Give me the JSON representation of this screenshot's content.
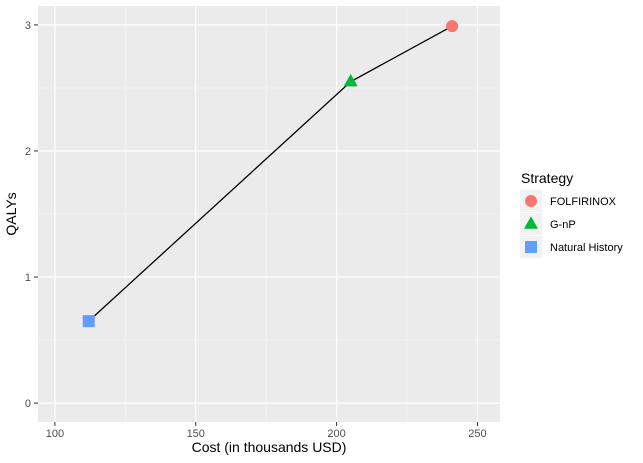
{
  "chart_data": {
    "type": "line",
    "xlabel": "Cost (in thousands USD)",
    "ylabel": "QALYs",
    "xlim": [
      94,
      258
    ],
    "ylim": [
      -0.15,
      3.15
    ],
    "x_ticks": [
      100,
      150,
      200,
      250
    ],
    "y_ticks": [
      0,
      1,
      2,
      3
    ],
    "x_minor_ticks": [
      125,
      175,
      225
    ],
    "y_minor_ticks": [
      0.5,
      1.5,
      2.5
    ],
    "grid": true,
    "legend": {
      "title": "Strategy",
      "placement": "right",
      "entries": [
        {
          "label": "FOLFIRINOX",
          "shape": "circle",
          "color": "#F8766D"
        },
        {
          "label": "G-nP",
          "shape": "triangle",
          "color": "#00BA38"
        },
        {
          "label": "Natural History",
          "shape": "square",
          "color": "#619CFF"
        }
      ]
    },
    "line": {
      "x": [
        112,
        205,
        241
      ],
      "y": [
        0.65,
        2.55,
        2.99
      ],
      "color": "#000000"
    },
    "points": [
      {
        "strategy": "Natural History",
        "x": 112,
        "y": 0.65,
        "shape": "square",
        "color": "#619CFF"
      },
      {
        "strategy": "G-nP",
        "x": 205,
        "y": 2.55,
        "shape": "triangle",
        "color": "#00BA38"
      },
      {
        "strategy": "FOLFIRINOX",
        "x": 241,
        "y": 2.99,
        "shape": "circle",
        "color": "#F8766D"
      }
    ]
  }
}
